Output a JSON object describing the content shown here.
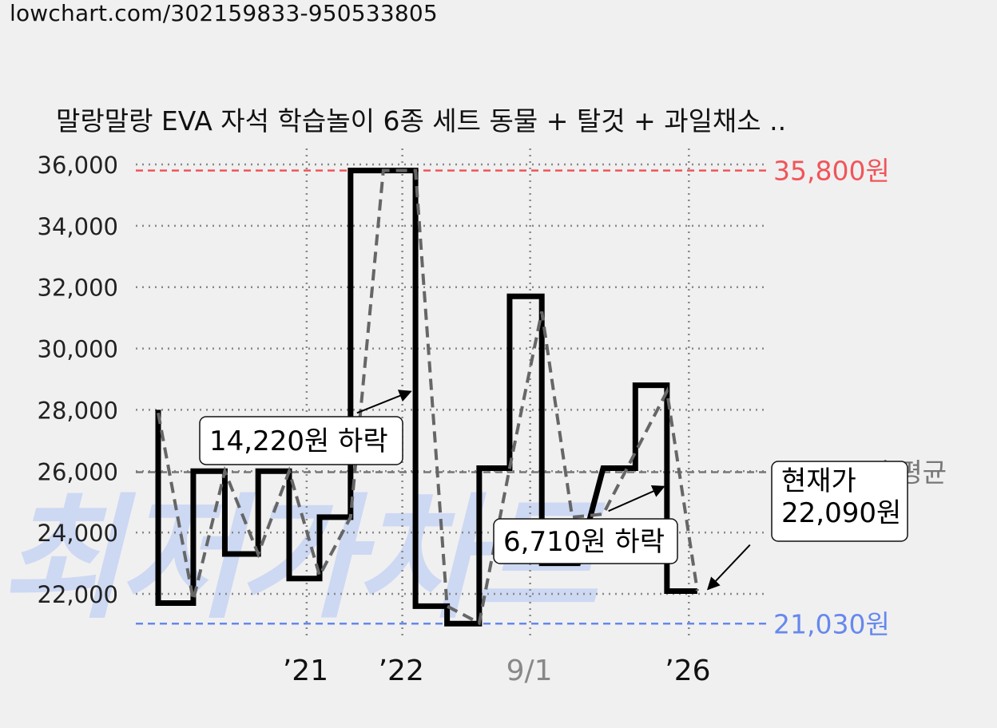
{
  "url": "lowchart.com/302159833-950533805",
  "watermark": "최저가차트",
  "colors": {
    "price_line": "#000000",
    "trend_line": "#666666",
    "max_line": "#f0555a",
    "min_line": "#6688ee",
    "avg_line": "#777777",
    "grid": "#888888",
    "watermark": "#c8d4f4"
  },
  "chart_data": {
    "type": "line",
    "title": "말랑말랑 EVA 자석 학습놀이 6종 세트 동물 + 탈것 + 과일채소 ..",
    "ylim": [
      20300,
      36600
    ],
    "y_ticks": [
      22000,
      24000,
      26000,
      28000,
      30000,
      32000,
      34000,
      36000
    ],
    "y_tick_labels": [
      "22,000",
      "24,000",
      "26,000",
      "28,000",
      "30,000",
      "32,000",
      "34,000",
      "36,000"
    ],
    "x_ticks": [
      {
        "label": "’21",
        "pos": 0.2539,
        "muted": false
      },
      {
        "label": "’22",
        "pos": 0.4175,
        "muted": false
      },
      {
        "label": "9/1",
        "pos": 0.6361,
        "muted": true
      },
      {
        "label": "’26",
        "pos": 0.9075,
        "muted": false
      }
    ],
    "x_extra_gridlines": [
      0.2539,
      0.4175,
      0.6361,
      0.9075
    ],
    "series": [
      {
        "style": "step",
        "points": [
          [
            0.0,
            28000
          ],
          [
            0.0,
            21700
          ],
          [
            0.06,
            21700
          ],
          [
            0.06,
            26000
          ],
          [
            0.114,
            26000
          ],
          [
            0.114,
            23300
          ],
          [
            0.171,
            23300
          ],
          [
            0.171,
            26000
          ],
          [
            0.224,
            26000
          ],
          [
            0.224,
            22500
          ],
          [
            0.276,
            22500
          ],
          [
            0.276,
            24500
          ],
          [
            0.329,
            24500
          ],
          [
            0.329,
            35800
          ],
          [
            0.44,
            35800
          ],
          [
            0.44,
            21600
          ],
          [
            0.494,
            21600
          ],
          [
            0.494,
            21030
          ],
          [
            0.549,
            21030
          ],
          [
            0.549,
            26100
          ],
          [
            0.601,
            26100
          ],
          [
            0.601,
            31700
          ],
          [
            0.656,
            31700
          ],
          [
            0.656,
            23000
          ],
          [
            0.718,
            23000
          ],
          [
            0.761,
            26100
          ],
          [
            0.816,
            26100
          ],
          [
            0.816,
            28800
          ],
          [
            0.87,
            28800
          ],
          [
            0.87,
            22090
          ],
          [
            0.922,
            22090
          ]
        ]
      },
      {
        "style": "dashed",
        "points": [
          [
            0.0,
            27900
          ],
          [
            0.06,
            21800
          ],
          [
            0.114,
            26000
          ],
          [
            0.171,
            23300
          ],
          [
            0.224,
            26000
          ],
          [
            0.276,
            22600
          ],
          [
            0.329,
            24500
          ],
          [
            0.385,
            35800
          ],
          [
            0.44,
            35800
          ],
          [
            0.494,
            21600
          ],
          [
            0.549,
            21050
          ],
          [
            0.601,
            26100
          ],
          [
            0.656,
            31200
          ],
          [
            0.708,
            24500
          ],
          [
            0.761,
            24600
          ],
          [
            0.87,
            28600
          ],
          [
            0.922,
            22100
          ]
        ]
      }
    ],
    "reference_lines": [
      {
        "kind": "max",
        "value": 35800,
        "label": "35,800원"
      },
      {
        "kind": "avg",
        "value": 25970,
        "label": "25,970원 평균"
      },
      {
        "kind": "min",
        "value": 21030,
        "label": "21,030원"
      }
    ],
    "annotations": [
      {
        "lines": [
          "14,220원 하락"
        ],
        "arrow_from": [
          0.34,
          27900
        ],
        "arrow_to": [
          0.432,
          28600
        ]
      },
      {
        "lines": [
          "6,710원 하락"
        ],
        "arrow_from": [
          0.77,
          24700
        ],
        "arrow_to": [
          0.865,
          25500
        ]
      },
      {
        "lines": [
          "현재가",
          "22,090원"
        ],
        "arrow_from": [
          1.012,
          23600
        ],
        "arrow_to": [
          0.94,
          22150
        ]
      }
    ]
  }
}
